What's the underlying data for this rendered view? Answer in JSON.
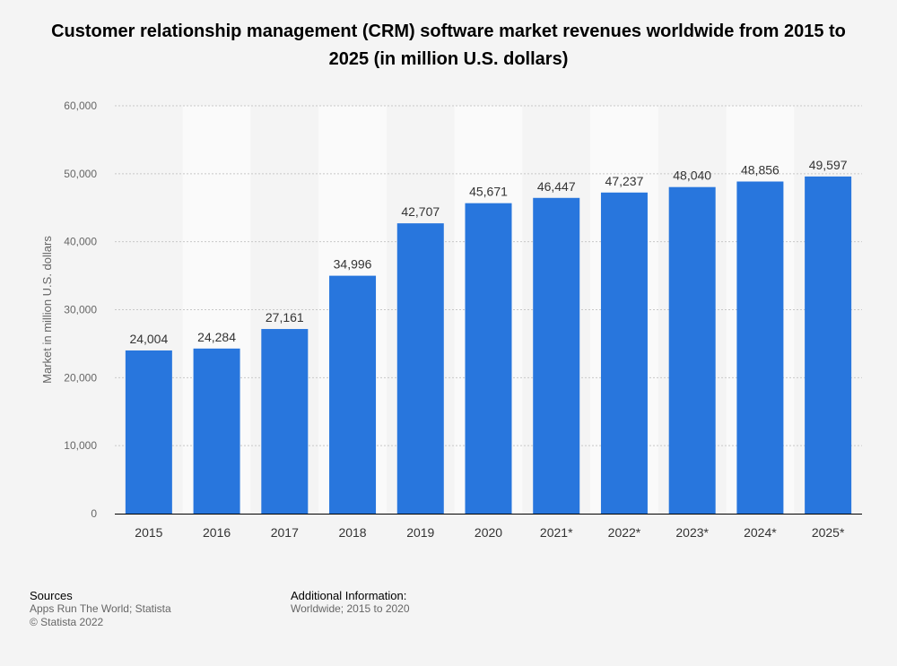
{
  "title": "Customer relationship management (CRM) software market revenues worldwide from 2015 to 2025 (in million U.S. dollars)",
  "chart_data": {
    "type": "bar",
    "title": "Customer relationship management (CRM) software market revenues worldwide from 2015 to 2025 (in million U.S. dollars)",
    "xlabel": "",
    "ylabel": "Market in million U.S. dollars",
    "categories": [
      "2015",
      "2016",
      "2017",
      "2018",
      "2019",
      "2020",
      "2021*",
      "2022*",
      "2023*",
      "2024*",
      "2025*"
    ],
    "values": [
      24004,
      24284,
      27161,
      34996,
      42707,
      45671,
      46447,
      47237,
      48040,
      48856,
      49597
    ],
    "value_labels": [
      "24,004",
      "24,284",
      "27,161",
      "34,996",
      "42,707",
      "45,671",
      "46,447",
      "47,237",
      "48,040",
      "48,856",
      "49,597"
    ],
    "ylim": [
      0,
      60000
    ],
    "yticks": [
      0,
      10000,
      20000,
      30000,
      40000,
      50000,
      60000
    ],
    "ytick_labels": [
      "0",
      "10,000",
      "20,000",
      "30,000",
      "40,000",
      "50,000",
      "60,000"
    ],
    "grid": true,
    "legend": "none",
    "bar_color": "#2876dd"
  },
  "footer": {
    "sources_heading": "Sources",
    "sources_line1": "Apps Run The World; Statista",
    "sources_line2": "© Statista 2022",
    "info_heading": "Additional Information:",
    "info_line1": "Worldwide; 2015 to 2020"
  }
}
